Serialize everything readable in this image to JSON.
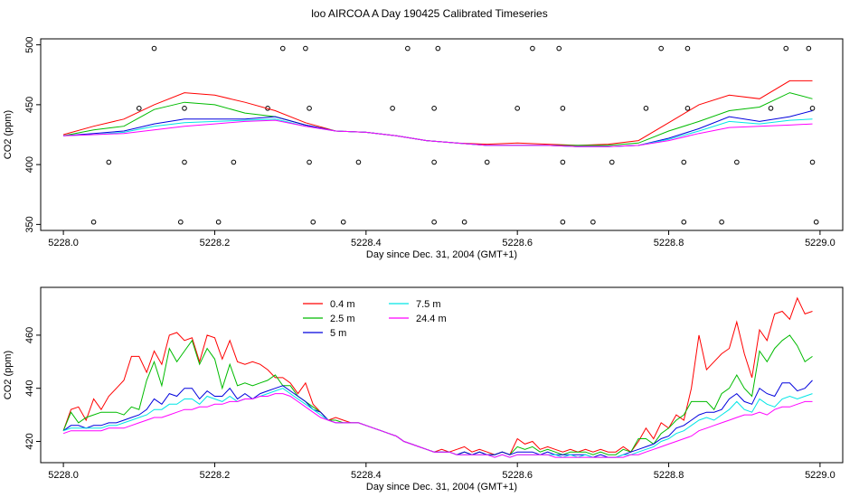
{
  "title": "loo AIRCOA A  Day 190425  Calibrated Timeseries",
  "chart_data": [
    {
      "type": "line",
      "xlabel": "Day since Dec. 31, 2004 (GMT+1)",
      "ylabel": "CO2 (ppm)",
      "xlim": [
        5227.97,
        5229.03
      ],
      "ylim": [
        345,
        505
      ],
      "xticks": [
        5228.0,
        5228.2,
        5228.4,
        5228.6,
        5228.8,
        5229.0
      ],
      "xtick_labels": [
        "5228.0",
        "5228.2",
        "5228.4",
        "5228.6",
        "5228.8",
        "5229.0"
      ],
      "yticks": [
        350,
        400,
        450,
        500
      ],
      "ytick_labels": [
        "350",
        "400",
        "450",
        "500"
      ],
      "legend": "none",
      "grid": false,
      "x": [
        5228.0,
        5228.04,
        5228.08,
        5228.12,
        5228.16,
        5228.2,
        5228.24,
        5228.28,
        5228.32,
        5228.36,
        5228.4,
        5228.44,
        5228.48,
        5228.52,
        5228.56,
        5228.6,
        5228.64,
        5228.68,
        5228.72,
        5228.76,
        5228.8,
        5228.84,
        5228.88,
        5228.92,
        5228.96,
        5228.99
      ],
      "series": [
        {
          "color": "#ff0000",
          "values": [
            425,
            432,
            438,
            450,
            460,
            458,
            452,
            445,
            435,
            428,
            427,
            424,
            420,
            418,
            417,
            418,
            417,
            416,
            417,
            420,
            435,
            450,
            458,
            455,
            470,
            470
          ]
        },
        {
          "color": "#00bb00",
          "values": [
            424,
            429,
            432,
            446,
            452,
            450,
            443,
            440,
            433,
            428,
            427,
            424,
            420,
            418,
            416,
            416,
            416,
            416,
            416,
            418,
            428,
            436,
            445,
            448,
            460,
            455
          ]
        },
        {
          "color": "#0000dd",
          "values": [
            424,
            426,
            428,
            434,
            438,
            438,
            438,
            440,
            433,
            428,
            427,
            424,
            420,
            418,
            416,
            416,
            416,
            415,
            415,
            416,
            422,
            430,
            440,
            436,
            440,
            445
          ]
        },
        {
          "color": "#00e5e5",
          "values": [
            424,
            425,
            427,
            432,
            435,
            436,
            437,
            438,
            432,
            428,
            427,
            424,
            420,
            418,
            416,
            416,
            416,
            415,
            415,
            416,
            421,
            428,
            436,
            434,
            437,
            438
          ]
        },
        {
          "color": "#ff00ff",
          "values": [
            424,
            425,
            426,
            429,
            432,
            434,
            436,
            437,
            432,
            428,
            427,
            424,
            420,
            418,
            416,
            416,
            416,
            415,
            415,
            416,
            420,
            426,
            431,
            432,
            433,
            434
          ]
        }
      ],
      "points": {
        "x": [
          5228.04,
          5228.06,
          5228.1,
          5228.12,
          5228.155,
          5228.16,
          5228.16,
          5228.205,
          5228.225,
          5228.27,
          5228.29,
          5228.32,
          5228.325,
          5228.325,
          5228.33,
          5228.37,
          5228.39,
          5228.435,
          5228.455,
          5228.49,
          5228.49,
          5228.49,
          5228.495,
          5228.53,
          5228.56,
          5228.6,
          5228.62,
          5228.655,
          5228.66,
          5228.66,
          5228.66,
          5228.7,
          5228.725,
          5228.77,
          5228.79,
          5228.82,
          5228.82,
          5228.825,
          5228.825,
          5228.87,
          5228.89,
          5228.935,
          5228.955,
          5228.985,
          5228.99,
          5228.99,
          5228.995
        ],
        "y": [
          352,
          402,
          447,
          497,
          352,
          402,
          447,
          352,
          402,
          447,
          497,
          497,
          447,
          402,
          352,
          352,
          402,
          447,
          497,
          352,
          402,
          447,
          497,
          352,
          402,
          447,
          497,
          497,
          447,
          402,
          352,
          352,
          402,
          447,
          497,
          352,
          402,
          447,
          497,
          352,
          402,
          447,
          497,
          497,
          447,
          402,
          352
        ]
      }
    },
    {
      "type": "line",
      "xlabel": "Day since Dec. 31, 2004 (GMT+1)",
      "ylabel": "CO2 (ppm)",
      "xlim": [
        5227.97,
        5229.03
      ],
      "ylim": [
        412,
        478
      ],
      "xticks": [
        5228.0,
        5228.2,
        5228.4,
        5228.6,
        5228.8,
        5229.0
      ],
      "xtick_labels": [
        "5228.0",
        "5228.2",
        "5228.4",
        "5228.6",
        "5228.8",
        "5229.0"
      ],
      "yticks": [
        420,
        440,
        460
      ],
      "ytick_labels": [
        "420",
        "440",
        "460"
      ],
      "legend": "top-left",
      "grid": false,
      "x": [
        5228.0,
        5228.01,
        5228.02,
        5228.03,
        5228.04,
        5228.05,
        5228.06,
        5228.07,
        5228.08,
        5228.09,
        5228.1,
        5228.11,
        5228.12,
        5228.13,
        5228.14,
        5228.15,
        5228.16,
        5228.17,
        5228.18,
        5228.19,
        5228.2,
        5228.21,
        5228.22,
        5228.23,
        5228.24,
        5228.25,
        5228.26,
        5228.27,
        5228.28,
        5228.29,
        5228.3,
        5228.31,
        5228.32,
        5228.33,
        5228.34,
        5228.35,
        5228.36,
        5228.37,
        5228.38,
        5228.39,
        5228.4,
        5228.41,
        5228.42,
        5228.43,
        5228.44,
        5228.45,
        5228.46,
        5228.47,
        5228.48,
        5228.49,
        5228.5,
        5228.51,
        5228.52,
        5228.53,
        5228.54,
        5228.55,
        5228.56,
        5228.57,
        5228.58,
        5228.59,
        5228.6,
        5228.61,
        5228.62,
        5228.63,
        5228.64,
        5228.65,
        5228.66,
        5228.67,
        5228.68,
        5228.69,
        5228.7,
        5228.71,
        5228.72,
        5228.73,
        5228.74,
        5228.75,
        5228.76,
        5228.77,
        5228.78,
        5228.79,
        5228.8,
        5228.81,
        5228.82,
        5228.83,
        5228.84,
        5228.85,
        5228.86,
        5228.87,
        5228.88,
        5228.89,
        5228.9,
        5228.91,
        5228.92,
        5228.93,
        5228.94,
        5228.95,
        5228.96,
        5228.97,
        5228.98,
        5228.99
      ],
      "series": [
        {
          "name": "0.4 m",
          "color": "#ff0000",
          "values": [
            424,
            432,
            433,
            428,
            436,
            432,
            437,
            440,
            443,
            452,
            452,
            446,
            454,
            449,
            460,
            461,
            458,
            459,
            450,
            460,
            459,
            451,
            458,
            450,
            449,
            450,
            449,
            447,
            444,
            444,
            442,
            438,
            442,
            434,
            431,
            428,
            429,
            428,
            427,
            427,
            426,
            425,
            424,
            423,
            422,
            420,
            419,
            418,
            417,
            416,
            417,
            416,
            417,
            418,
            416,
            417,
            416,
            415,
            416,
            415,
            421,
            419,
            420,
            417,
            418,
            417,
            416,
            417,
            416,
            417,
            416,
            417,
            416,
            416,
            418,
            416,
            420,
            425,
            421,
            427,
            425,
            430,
            428,
            440,
            460,
            447,
            450,
            453,
            455,
            465,
            453,
            444,
            462,
            458,
            468,
            469,
            466,
            474,
            468,
            469
          ]
        },
        {
          "name": "2.5 m",
          "color": "#00bb00",
          "values": [
            424,
            431,
            427,
            429,
            430,
            431,
            431,
            431,
            430,
            433,
            432,
            443,
            450,
            441,
            455,
            450,
            454,
            458,
            449,
            455,
            451,
            440,
            449,
            441,
            442,
            441,
            442,
            443,
            445,
            441,
            441,
            437,
            435,
            433,
            431,
            428,
            428,
            427,
            427,
            427,
            426,
            425,
            424,
            423,
            422,
            420,
            419,
            418,
            417,
            416,
            416,
            416,
            415,
            416,
            415,
            416,
            415,
            415,
            416,
            415,
            418,
            417,
            418,
            416,
            417,
            416,
            415,
            416,
            416,
            416,
            415,
            416,
            415,
            415,
            417,
            416,
            421,
            421,
            419,
            423,
            425,
            428,
            430,
            435,
            435,
            435,
            432,
            438,
            440,
            445,
            440,
            437,
            454,
            450,
            455,
            458,
            460,
            456,
            450,
            452
          ]
        },
        {
          "name": "5 m",
          "color": "#0000dd",
          "values": [
            424,
            426,
            426,
            425,
            426,
            426,
            427,
            427,
            428,
            429,
            430,
            432,
            436,
            434,
            438,
            437,
            440,
            440,
            436,
            439,
            437,
            437,
            440,
            436,
            438,
            436,
            438,
            439,
            440,
            441,
            439,
            437,
            435,
            432,
            431,
            428,
            427,
            427,
            427,
            427,
            426,
            425,
            424,
            423,
            422,
            420,
            419,
            418,
            417,
            416,
            416,
            416,
            415,
            416,
            415,
            416,
            415,
            415,
            416,
            415,
            416,
            416,
            416,
            415,
            416,
            415,
            415,
            415,
            415,
            415,
            414,
            415,
            414,
            414,
            415,
            416,
            417,
            418,
            419,
            421,
            422,
            425,
            426,
            428,
            430,
            431,
            431,
            432,
            436,
            438,
            435,
            434,
            440,
            438,
            437,
            442,
            442,
            439,
            440,
            443
          ]
        },
        {
          "name": "7.5 m",
          "color": "#00e5e5",
          "values": [
            424,
            425,
            425,
            425,
            425,
            425,
            426,
            426,
            427,
            428,
            429,
            430,
            432,
            432,
            434,
            434,
            436,
            436,
            434,
            437,
            436,
            435,
            437,
            435,
            436,
            436,
            437,
            438,
            439,
            440,
            438,
            436,
            434,
            432,
            430,
            428,
            427,
            427,
            427,
            427,
            426,
            425,
            424,
            423,
            422,
            420,
            419,
            418,
            417,
            416,
            416,
            416,
            415,
            415,
            415,
            415,
            415,
            414,
            415,
            414,
            415,
            415,
            415,
            415,
            415,
            415,
            414,
            415,
            414,
            415,
            414,
            414,
            414,
            414,
            415,
            415,
            416,
            417,
            418,
            420,
            421,
            423,
            424,
            426,
            428,
            429,
            428,
            430,
            432,
            435,
            432,
            431,
            436,
            434,
            433,
            436,
            437,
            436,
            437,
            438
          ]
        },
        {
          "name": "24.4 m",
          "color": "#ff00ff",
          "values": [
            423,
            424,
            424,
            424,
            424,
            424,
            425,
            425,
            425,
            426,
            427,
            428,
            429,
            429,
            430,
            431,
            432,
            432,
            433,
            433,
            434,
            434,
            435,
            435,
            436,
            436,
            437,
            437,
            438,
            438,
            437,
            435,
            433,
            431,
            429,
            428,
            427,
            427,
            427,
            427,
            426,
            425,
            424,
            423,
            422,
            420,
            419,
            418,
            417,
            416,
            416,
            416,
            415,
            415,
            415,
            415,
            415,
            414,
            415,
            414,
            415,
            415,
            415,
            415,
            415,
            414,
            414,
            414,
            414,
            414,
            414,
            414,
            414,
            414,
            414,
            415,
            415,
            416,
            417,
            418,
            419,
            420,
            421,
            422,
            424,
            425,
            426,
            427,
            428,
            429,
            430,
            430,
            431,
            430,
            432,
            433,
            433,
            434,
            435,
            435
          ]
        }
      ]
    }
  ]
}
